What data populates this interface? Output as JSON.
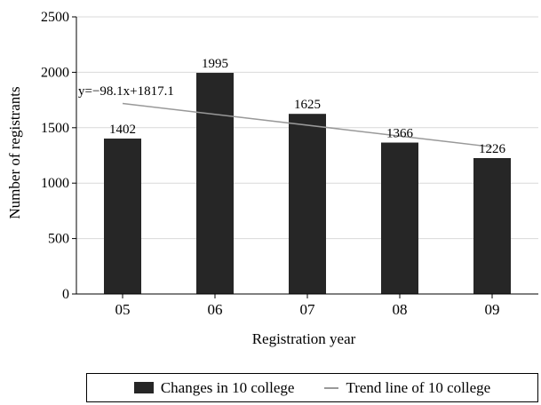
{
  "chart_data": {
    "type": "bar",
    "categories": [
      "05",
      "06",
      "07",
      "08",
      "09"
    ],
    "series": [
      {
        "name": "Changes in 10 college",
        "values": [
          1402,
          1995,
          1625,
          1366,
          1226
        ]
      }
    ],
    "trend": {
      "name": "Trend line of 10 college",
      "equation": "y=−98.1x+1817.1",
      "slope": -98.1,
      "intercept": 1817.1
    },
    "xlabel": "Registration year",
    "ylabel": "Number of registrants",
    "ylim": [
      0,
      2500
    ],
    "yticks": [
      "0",
      "500",
      "1000",
      "1500",
      "2000",
      "2500"
    ],
    "grid": true,
    "legend_position": "bottom",
    "colors": {
      "bar": "#262626",
      "trend": "#999999",
      "grid": "#d9d9d9"
    }
  }
}
